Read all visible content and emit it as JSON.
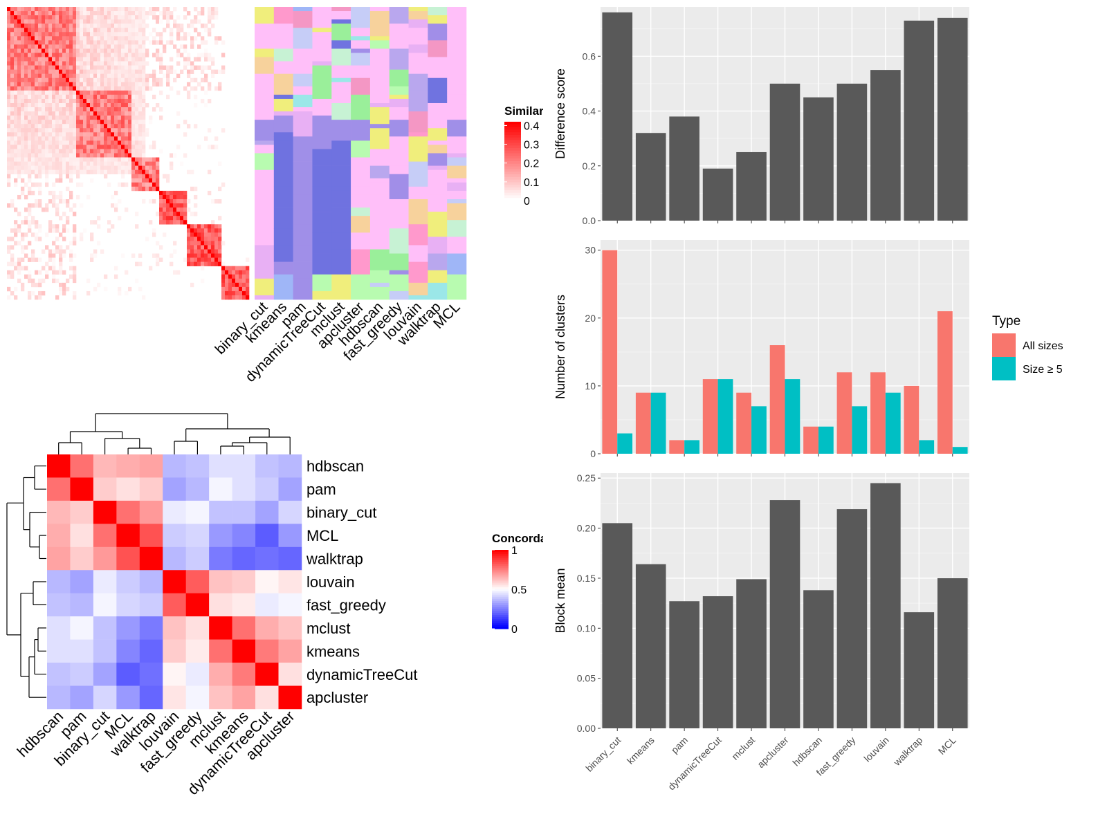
{
  "chart_data": [
    {
      "type": "heatmap",
      "name": "similarity-heatmap",
      "legend_title": "Similarity",
      "legend_ticks": [
        0,
        0.1,
        0.2,
        0.3,
        0.4
      ],
      "colors": {
        "low": "#ffffff",
        "high": "#ff0000"
      },
      "description_of_structure": "block-diagonal similarity matrix with dense upper-left region and bright diagonal"
    },
    {
      "type": "heatmap",
      "name": "cluster-label-annotation",
      "columns": [
        "binary_cut",
        "kmeans",
        "pam",
        "dynamicTreeCut",
        "mclust",
        "apcluster",
        "hdbscan",
        "fast_greedy",
        "louvain",
        "walktrap",
        "MCL"
      ]
    },
    {
      "type": "heatmap",
      "name": "concordance-heatmap",
      "legend_title": "Concordance",
      "legend_ticks": [
        0,
        0.5,
        1
      ],
      "colors": {
        "low": "#0000ff",
        "mid": "#ffffff",
        "high": "#ff0000"
      },
      "rows": [
        "hdbscan",
        "pam",
        "binary_cut",
        "MCL",
        "walktrap",
        "louvain",
        "fast_greedy",
        "mclust",
        "kmeans",
        "dynamicTreeCut",
        "apcluster"
      ],
      "columns": [
        "hdbscan",
        "pam",
        "binary_cut",
        "MCL",
        "walktrap",
        "louvain",
        "fast_greedy",
        "mclust",
        "kmeans",
        "dynamicTreeCut",
        "apcluster"
      ],
      "values": [
        [
          1.0,
          0.78,
          0.64,
          0.66,
          0.68,
          0.36,
          0.38,
          0.44,
          0.44,
          0.38,
          0.36
        ],
        [
          0.78,
          1.0,
          0.6,
          0.56,
          0.6,
          0.32,
          0.36,
          0.48,
          0.44,
          0.4,
          0.32
        ],
        [
          0.64,
          0.6,
          1.0,
          0.78,
          0.7,
          0.46,
          0.48,
          0.38,
          0.38,
          0.32,
          0.42
        ],
        [
          0.66,
          0.56,
          0.78,
          1.0,
          0.84,
          0.4,
          0.42,
          0.3,
          0.26,
          0.18,
          0.3
        ],
        [
          0.68,
          0.6,
          0.7,
          0.84,
          1.0,
          0.36,
          0.4,
          0.24,
          0.2,
          0.22,
          0.2
        ],
        [
          0.36,
          0.32,
          0.46,
          0.4,
          0.36,
          1.0,
          0.82,
          0.62,
          0.6,
          0.52,
          0.55
        ],
        [
          0.38,
          0.36,
          0.48,
          0.42,
          0.4,
          0.82,
          1.0,
          0.56,
          0.54,
          0.46,
          0.48
        ],
        [
          0.44,
          0.48,
          0.38,
          0.3,
          0.24,
          0.62,
          0.56,
          1.0,
          0.78,
          0.66,
          0.62
        ],
        [
          0.44,
          0.44,
          0.38,
          0.26,
          0.2,
          0.6,
          0.54,
          0.78,
          1.0,
          0.76,
          0.68
        ],
        [
          0.38,
          0.4,
          0.32,
          0.18,
          0.22,
          0.52,
          0.46,
          0.66,
          0.76,
          1.0,
          0.56
        ],
        [
          0.36,
          0.32,
          0.42,
          0.3,
          0.2,
          0.55,
          0.48,
          0.62,
          0.68,
          0.56,
          1.0
        ]
      ]
    },
    {
      "type": "bar",
      "name": "difference-score",
      "categories": [
        "binary_cut",
        "kmeans",
        "pam",
        "dynamicTreeCut",
        "mclust",
        "apcluster",
        "hdbscan",
        "fast_greedy",
        "louvain",
        "walktrap",
        "MCL"
      ],
      "values": [
        0.76,
        0.32,
        0.38,
        0.19,
        0.25,
        0.5,
        0.45,
        0.5,
        0.55,
        0.73,
        0.74
      ],
      "ylabel": "Difference score",
      "ylim": [
        0,
        0.78
      ],
      "yticks": [
        0.0,
        0.2,
        0.4,
        0.6
      ],
      "ytick_labels": [
        "0.0",
        "0.2",
        "0.4",
        "0.6"
      ],
      "grid": true,
      "bar_color": "#595959"
    },
    {
      "type": "bar",
      "name": "number-of-clusters",
      "categories": [
        "binary_cut",
        "kmeans",
        "pam",
        "dynamicTreeCut",
        "mclust",
        "apcluster",
        "hdbscan",
        "fast_greedy",
        "louvain",
        "walktrap",
        "MCL"
      ],
      "series": [
        {
          "name": "All sizes",
          "values": [
            30,
            9,
            2,
            11,
            9,
            16,
            4,
            12,
            12,
            10,
            21
          ],
          "color": "#F8766D"
        },
        {
          "name": "Size ≥ 5",
          "values": [
            3,
            9,
            2,
            11,
            7,
            11,
            4,
            7,
            9,
            2,
            1
          ],
          "color": "#00BFC4"
        }
      ],
      "ylabel": "Number of clusters",
      "ylim": [
        0,
        31.5
      ],
      "yticks": [
        0,
        10,
        20,
        30
      ],
      "legend_title": "Type",
      "legend_position": "right",
      "grid": true
    },
    {
      "type": "bar",
      "name": "block-mean",
      "categories": [
        "binary_cut",
        "kmeans",
        "pam",
        "dynamicTreeCut",
        "mclust",
        "apcluster",
        "hdbscan",
        "fast_greedy",
        "louvain",
        "walktrap",
        "MCL"
      ],
      "values": [
        0.205,
        0.164,
        0.127,
        0.132,
        0.149,
        0.228,
        0.138,
        0.219,
        0.245,
        0.116,
        0.15
      ],
      "ylabel": "Block mean",
      "ylim": [
        0,
        0.255
      ],
      "yticks": [
        0.0,
        0.05,
        0.1,
        0.15,
        0.2,
        0.25
      ],
      "ytick_labels": [
        "0.00",
        "0.05",
        "0.10",
        "0.15",
        "0.20",
        "0.25"
      ],
      "grid": true,
      "bar_color": "#595959"
    }
  ]
}
